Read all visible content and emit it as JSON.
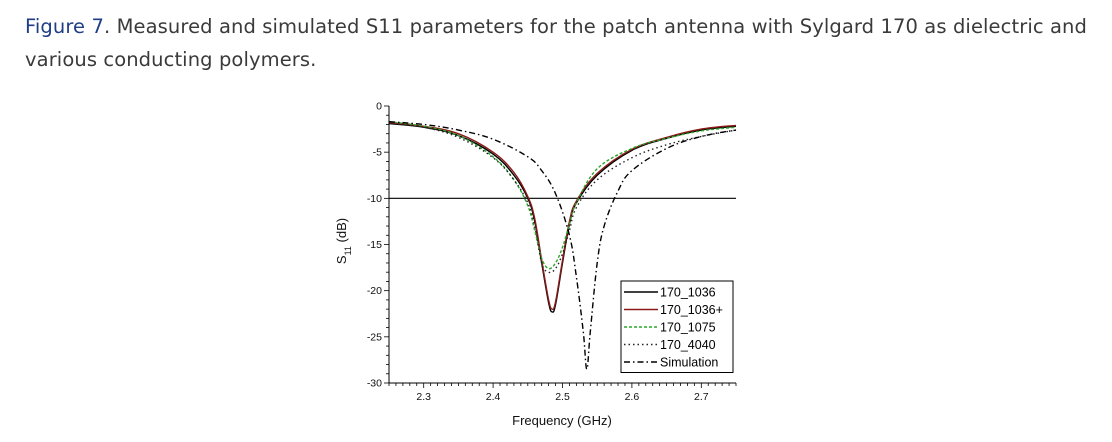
{
  "caption": {
    "label": "Figure 7",
    "text": ". Measured and simulated S11 parameters for the patch antenna with Sylgard 170 as dielectric and various conducting polymers."
  },
  "chart_data": {
    "type": "line",
    "xlabel": "Frequency (GHz)",
    "ylabel": "S11 (dB)",
    "xlim": [
      2.25,
      2.75
    ],
    "ylim": [
      -30,
      0
    ],
    "xticks": [
      2.3,
      2.4,
      2.5,
      2.6,
      2.7
    ],
    "yticks": [
      0,
      -5,
      -10,
      -15,
      -20,
      -25,
      -30
    ],
    "reference_line": -10,
    "series": [
      {
        "name": "170_1036",
        "color": "#000000",
        "dash": "solid",
        "x": [
          2.25,
          2.3,
          2.35,
          2.4,
          2.43,
          2.45,
          2.46,
          2.47,
          2.48,
          2.485,
          2.49,
          2.5,
          2.51,
          2.52,
          2.55,
          2.6,
          2.65,
          2.7,
          2.75
        ],
        "y": [
          -1.9,
          -2.3,
          -3.2,
          -5.2,
          -7.5,
          -10.0,
          -12.5,
          -17.0,
          -21.3,
          -22.3,
          -21.5,
          -17.0,
          -12.8,
          -10.5,
          -7.5,
          -4.8,
          -3.5,
          -2.6,
          -2.2
        ]
      },
      {
        "name": "170_1036+",
        "color": "#8b1a1a",
        "dash": "solid",
        "x": [
          2.25,
          2.3,
          2.35,
          2.4,
          2.43,
          2.45,
          2.46,
          2.47,
          2.48,
          2.485,
          2.49,
          2.5,
          2.51,
          2.52,
          2.55,
          2.6,
          2.65,
          2.7,
          2.75
        ],
        "y": [
          -1.8,
          -2.2,
          -3.0,
          -5.0,
          -7.2,
          -9.8,
          -12.2,
          -16.7,
          -21.0,
          -22.0,
          -21.2,
          -16.7,
          -12.5,
          -10.3,
          -7.3,
          -4.7,
          -3.4,
          -2.5,
          -2.1
        ]
      },
      {
        "name": "170_1075",
        "color": "#2aa52a",
        "dash": "3,2",
        "x": [
          2.25,
          2.3,
          2.35,
          2.4,
          2.43,
          2.45,
          2.46,
          2.47,
          2.48,
          2.49,
          2.5,
          2.51,
          2.52,
          2.55,
          2.6,
          2.65,
          2.7,
          2.75
        ],
        "y": [
          -1.7,
          -2.2,
          -3.2,
          -5.5,
          -8.0,
          -10.8,
          -13.5,
          -16.5,
          -17.6,
          -17.0,
          -15.3,
          -12.8,
          -10.5,
          -6.8,
          -4.6,
          -3.5,
          -2.7,
          -2.3
        ]
      },
      {
        "name": "170_4040",
        "color": "#222222",
        "dash": "1.5,3",
        "x": [
          2.25,
          2.3,
          2.35,
          2.4,
          2.43,
          2.45,
          2.46,
          2.47,
          2.48,
          2.49,
          2.5,
          2.51,
          2.52,
          2.55,
          2.6,
          2.65,
          2.7,
          2.75
        ],
        "y": [
          -1.9,
          -2.3,
          -3.4,
          -5.6,
          -8.0,
          -10.5,
          -13.0,
          -17.0,
          -18.0,
          -17.6,
          -16.0,
          -13.5,
          -11.0,
          -8.0,
          -5.6,
          -4.2,
          -3.3,
          -2.6
        ]
      },
      {
        "name": "Simulation",
        "color": "#000000",
        "dash": "6,3,1.5,3",
        "x": [
          2.25,
          2.3,
          2.35,
          2.4,
          2.45,
          2.47,
          2.49,
          2.51,
          2.52,
          2.53,
          2.535,
          2.54,
          2.55,
          2.56,
          2.58,
          2.6,
          2.65,
          2.7,
          2.75
        ],
        "y": [
          -1.7,
          -2.0,
          -2.6,
          -3.6,
          -5.5,
          -7.0,
          -9.5,
          -14.0,
          -18.5,
          -24.5,
          -28.5,
          -24.5,
          -17.0,
          -13.0,
          -9.2,
          -7.0,
          -4.6,
          -3.3,
          -2.6
        ]
      }
    ]
  }
}
